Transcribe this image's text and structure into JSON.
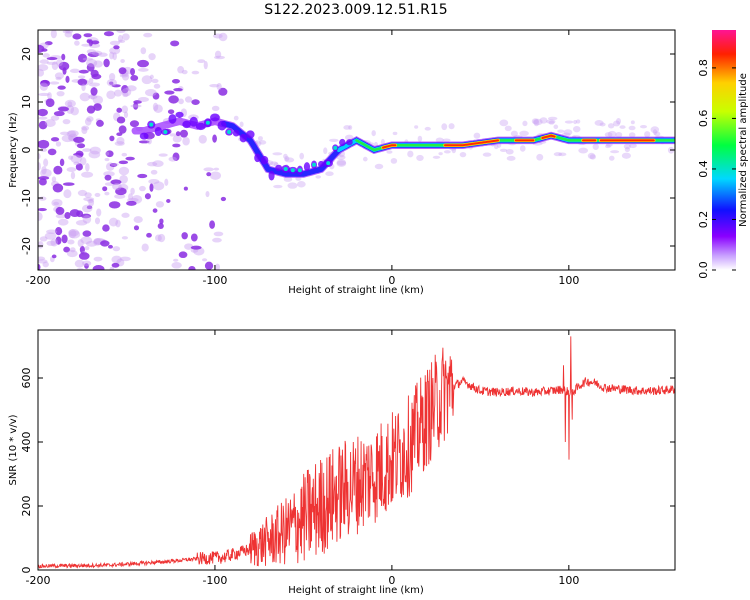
{
  "title": "S122.2023.009.12.51.R15",
  "chart_data": [
    {
      "type": "heatmap",
      "xlabel": "Height of straight line (km)",
      "ylabel": "Frequency (Hz)",
      "xlim": [
        -200,
        160
      ],
      "ylim": [
        -25,
        25
      ],
      "xticks": [
        -200,
        -100,
        0,
        100
      ],
      "xtick_labels": [
        "-200",
        "-100",
        "0",
        "100"
      ],
      "yticks": [
        -20,
        -10,
        0,
        10,
        20
      ],
      "ytick_labels": [
        "-20",
        "-10",
        "0",
        "10",
        "20"
      ],
      "ridge": {
        "x": [
          -140,
          -130,
          -120,
          -110,
          -100,
          -90,
          -80,
          -70,
          -60,
          -50,
          -40,
          -35,
          -30,
          -20,
          -10,
          0,
          10,
          20,
          40,
          60,
          80,
          90,
          100,
          110,
          130,
          160
        ],
        "frequency": [
          4,
          5,
          6,
          5,
          6,
          5,
          2,
          -4,
          -5,
          -5,
          -4,
          -2,
          0,
          2,
          0,
          1,
          1,
          1,
          1,
          2,
          2,
          3,
          2,
          2,
          2,
          2
        ]
      },
      "colorbar": {
        "label": "Normalized spectral amplitude",
        "range": [
          0,
          0.95
        ],
        "ticks": [
          0.0,
          0.2,
          0.4,
          0.6,
          0.8
        ],
        "tick_labels": [
          "0.0",
          "0.2",
          "0.4",
          "0.6",
          "0.8"
        ],
        "colors": [
          "#ffffff",
          "#8a00ff",
          "#0000ff",
          "#00ffff",
          "#00ff00",
          "#ffff00",
          "#ff0000",
          "#ff1493"
        ]
      }
    },
    {
      "type": "line",
      "xlabel": "Height of straight line (km)",
      "ylabel": "SNR (10 * v/v)",
      "xlim": [
        -200,
        160
      ],
      "ylim": [
        0,
        750
      ],
      "xticks": [
        -200,
        -100,
        0,
        100
      ],
      "xtick_labels": [
        "-200",
        "-100",
        "0",
        "100"
      ],
      "yticks": [
        0,
        200,
        400,
        600
      ],
      "ytick_labels": [
        "0",
        "200",
        "400",
        "600"
      ],
      "color": "#ee3333",
      "series": [
        {
          "name": "SNR",
          "x": [
            -200,
            -160,
            -130,
            -110,
            -95,
            -80,
            -70,
            -60,
            -50,
            -40,
            -30,
            -20,
            -10,
            0,
            10,
            20,
            30,
            40,
            50,
            60,
            70,
            80,
            90,
            97,
            100,
            103,
            107,
            110,
            115,
            120,
            130,
            140,
            150,
            160
          ],
          "y": [
            12,
            15,
            25,
            35,
            40,
            65,
            90,
            120,
            160,
            200,
            240,
            270,
            300,
            340,
            390,
            480,
            560,
            590,
            560,
            555,
            560,
            555,
            560,
            565,
            555,
            560,
            580,
            590,
            585,
            570,
            565,
            560,
            560,
            565
          ]
        }
      ],
      "spikes": [
        {
          "x": 97,
          "y": 640
        },
        {
          "x": 98,
          "y": 400
        },
        {
          "x": 100,
          "y": 345
        },
        {
          "x": 101,
          "y": 730
        },
        {
          "x": 102,
          "y": 470
        }
      ]
    }
  ]
}
